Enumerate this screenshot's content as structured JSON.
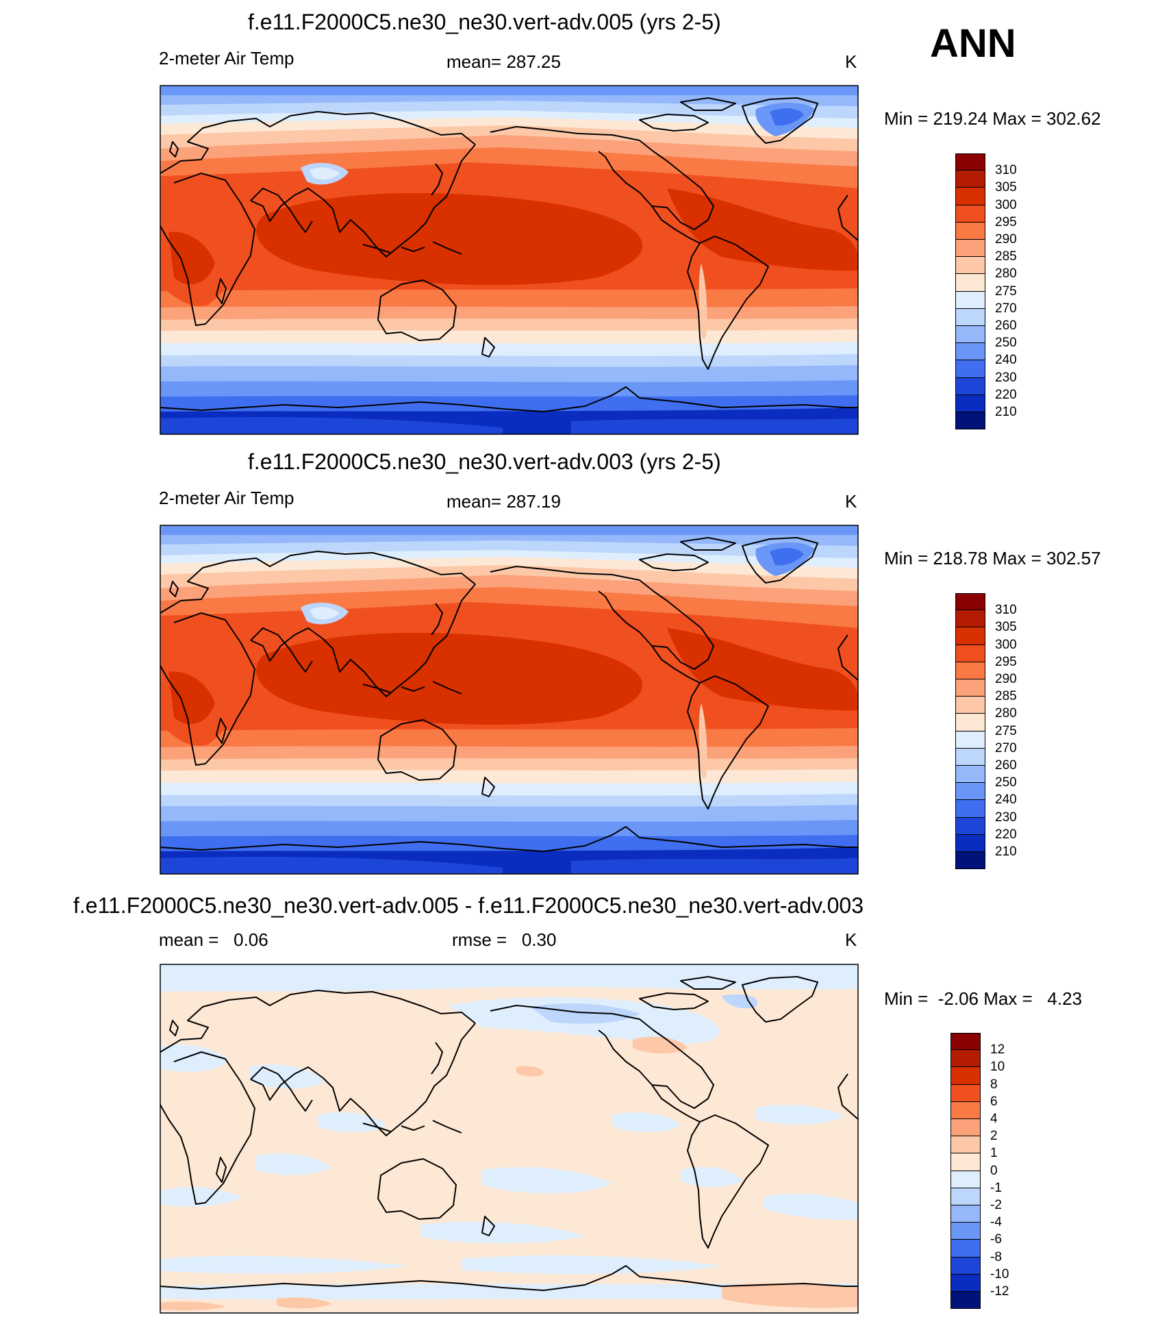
{
  "season": "ANN",
  "panels": [
    {
      "id": "p1",
      "title": "f.e11.F2000C5.ne30_ne30.vert-adv.005 (yrs 2-5)",
      "left_label": "2-meter Air Temp",
      "center_label": "mean= 287.25",
      "units": "K",
      "minmax": "Min = 219.24 Max = 302.62",
      "kind": "temp",
      "levels": [
        "310",
        "305",
        "300",
        "295",
        "290",
        "285",
        "280",
        "275",
        "270",
        "260",
        "250",
        "240",
        "230",
        "220",
        "210"
      ],
      "colors": [
        "#8b0000",
        "#b31c00",
        "#d93000",
        "#f05020",
        "#fa7a45",
        "#fca27a",
        "#fdc8a8",
        "#fde8d5",
        "#dfeefc",
        "#bcd6fc",
        "#95b8fb",
        "#6a97f7",
        "#3f6ef0",
        "#1d46d8",
        "#0b2dbf",
        "#00137a"
      ]
    },
    {
      "id": "p2",
      "title": "f.e11.F2000C5.ne30_ne30.vert-adv.003 (yrs 2-5)",
      "left_label": "2-meter Air Temp",
      "center_label": "mean= 287.19",
      "units": "K",
      "minmax": "Min = 218.78 Max = 302.57",
      "kind": "temp",
      "levels": [
        "310",
        "305",
        "300",
        "295",
        "290",
        "285",
        "280",
        "275",
        "270",
        "260",
        "250",
        "240",
        "230",
        "220",
        "210"
      ],
      "colors": [
        "#8b0000",
        "#b31c00",
        "#d93000",
        "#f05020",
        "#fa7a45",
        "#fca27a",
        "#fdc8a8",
        "#fde8d5",
        "#dfeefc",
        "#bcd6fc",
        "#95b8fb",
        "#6a97f7",
        "#3f6ef0",
        "#1d46d8",
        "#0b2dbf",
        "#00137a"
      ]
    },
    {
      "id": "p3",
      "title": "f.e11.F2000C5.ne30_ne30.vert-adv.005 - f.e11.F2000C5.ne30_ne30.vert-adv.003",
      "left_label": "mean =   0.06",
      "center_label": "rmse =   0.30",
      "units": "K",
      "minmax": "Min =  -2.06 Max =   4.23",
      "kind": "diff",
      "levels": [
        "12",
        "10",
        "8",
        "6",
        "4",
        "2",
        "1",
        "0",
        "-1",
        "-2",
        "-4",
        "-6",
        "-8",
        "-10",
        "-12"
      ],
      "colors": [
        "#8b0000",
        "#b31c00",
        "#d93000",
        "#f05020",
        "#fa7a45",
        "#fca27a",
        "#fdc8a8",
        "#fde8d5",
        "#dfeefc",
        "#bcd6fc",
        "#95b8fb",
        "#6a97f7",
        "#3f6ef0",
        "#1d46d8",
        "#0b2dbf",
        "#00137a"
      ]
    }
  ]
}
